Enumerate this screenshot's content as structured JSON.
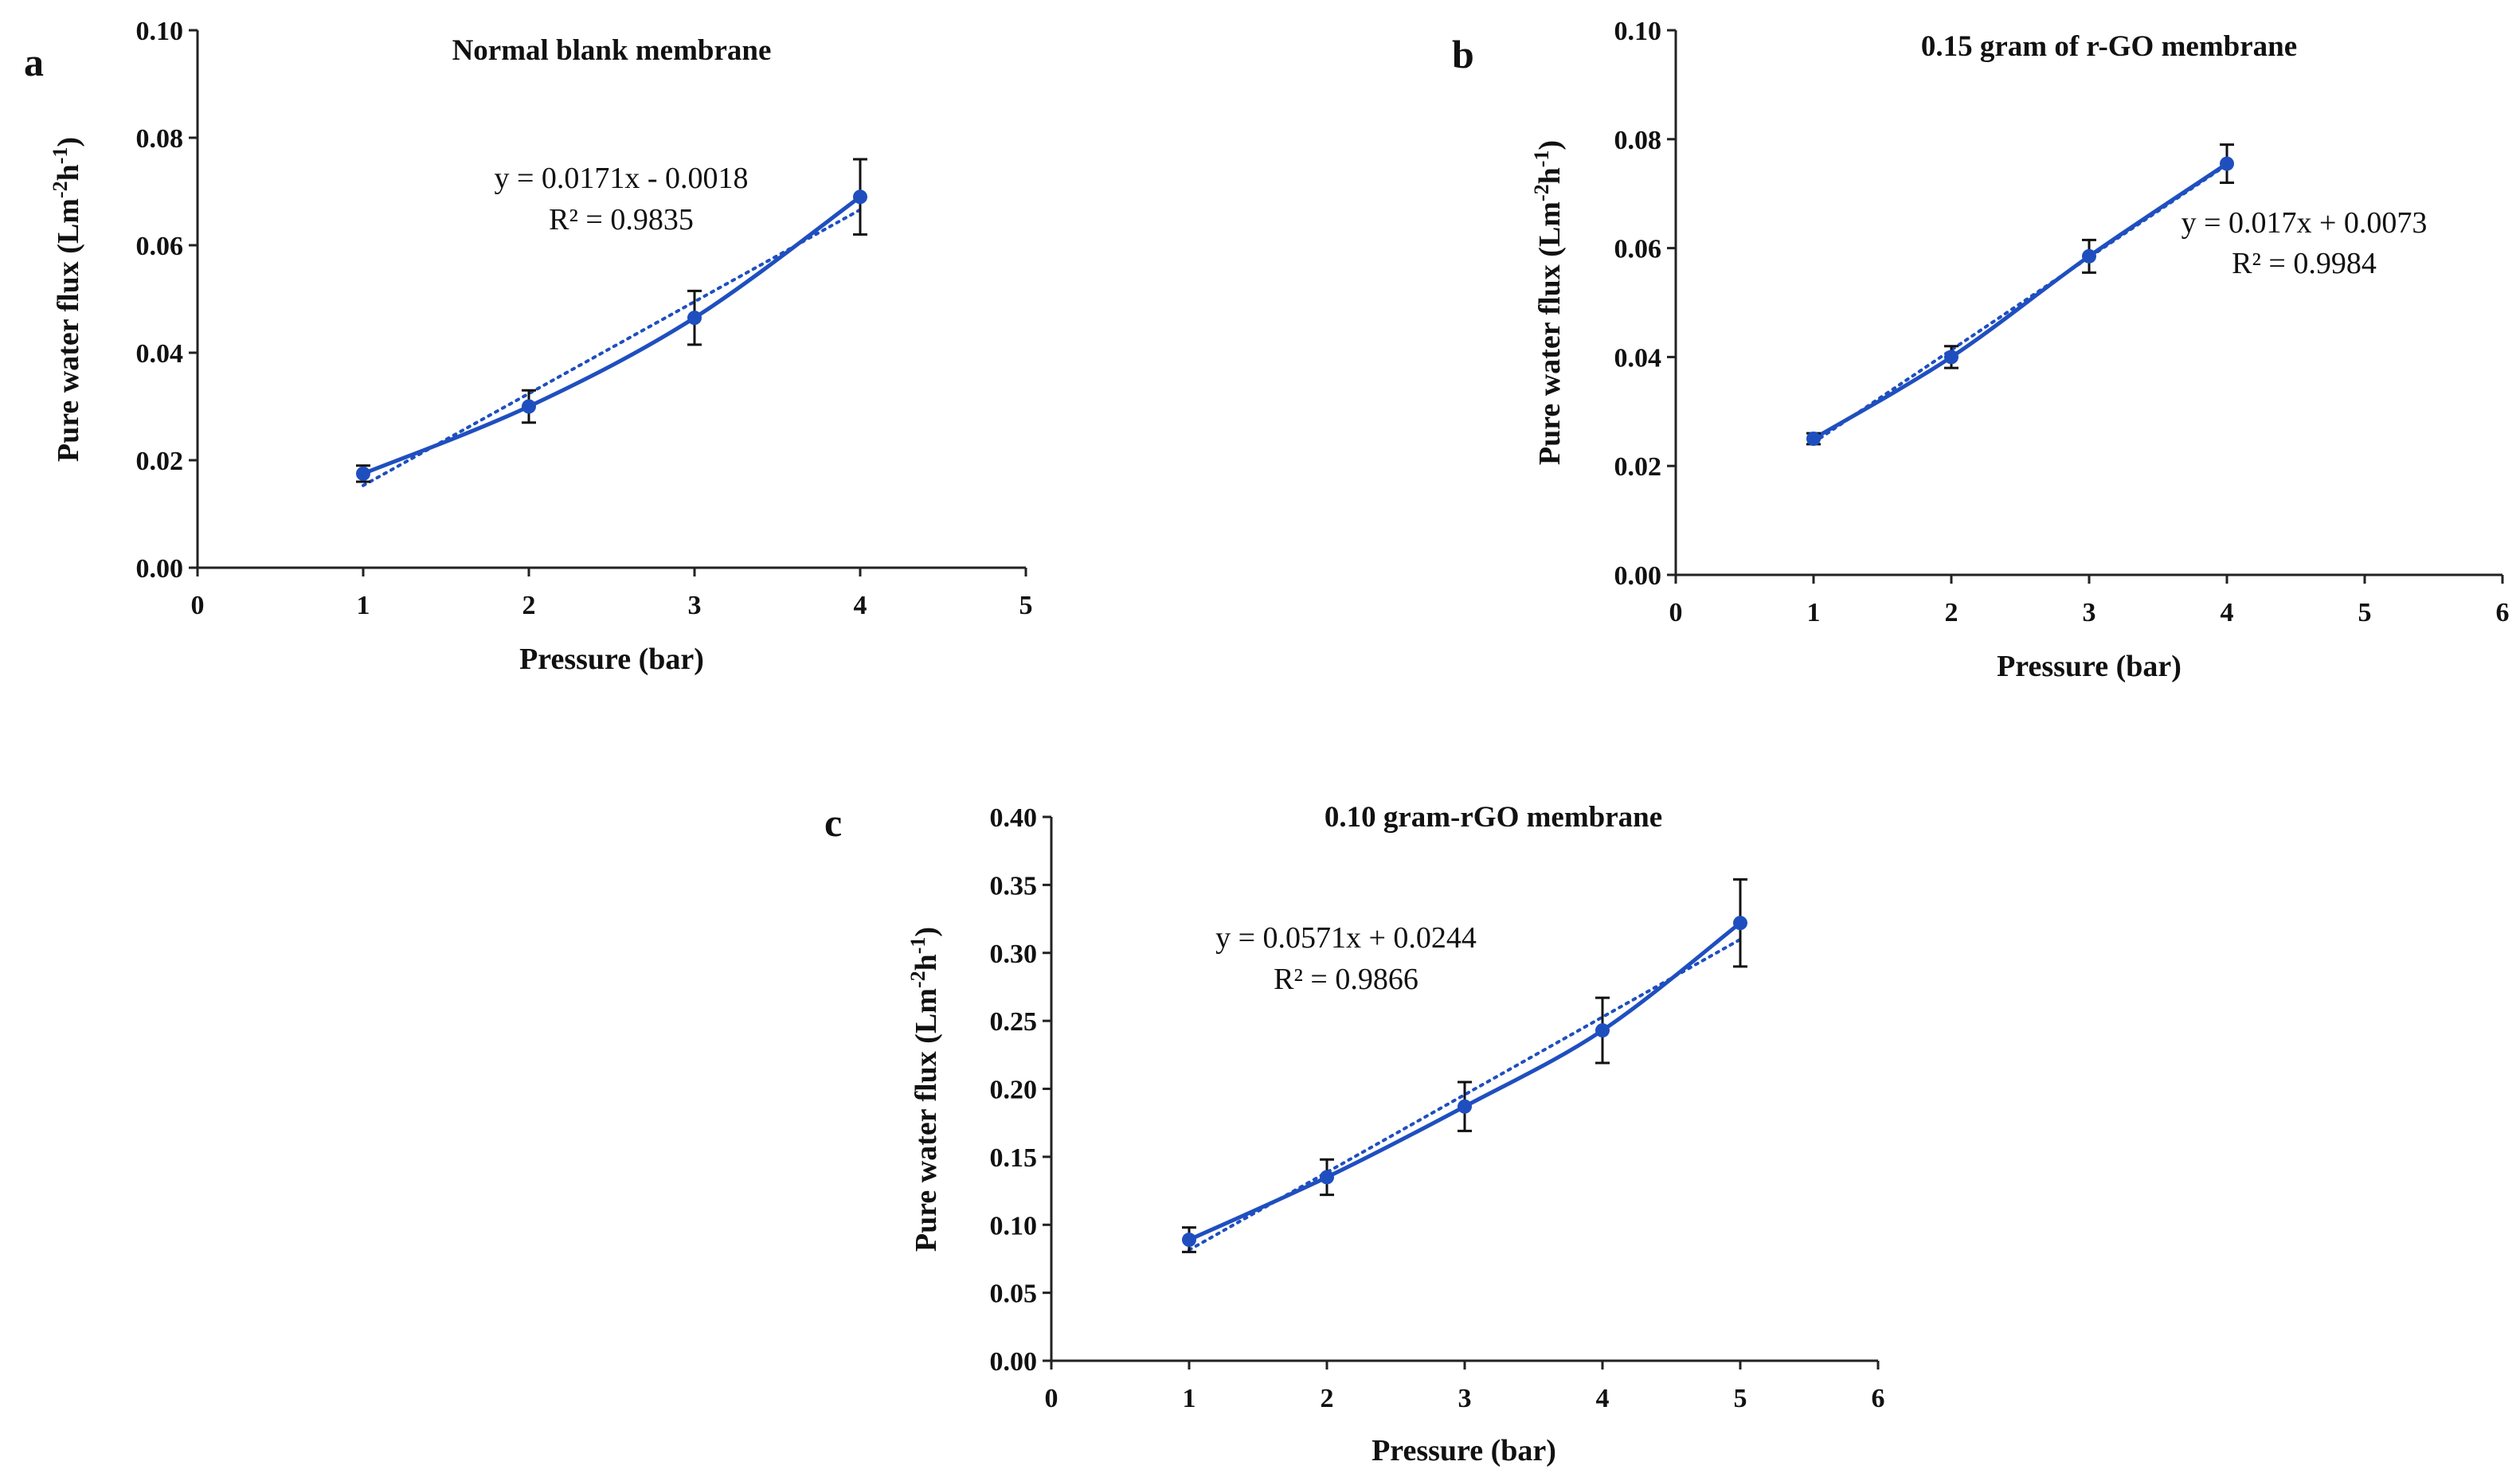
{
  "figure": {
    "colors": {
      "series": "#1f4fbf",
      "error_bar": "#111111",
      "axis": "#222222",
      "text": "#111111"
    }
  },
  "chart_data": [
    {
      "type": "line",
      "panel_label": "a",
      "title": "Normal blank membrane",
      "xlabel": "Pressure (bar)",
      "ylabel_main": "Pure water flux (Lm",
      "ylabel_sup1": "-2",
      "ylabel_mid": "h",
      "ylabel_sup2": "-1",
      "ylabel_end": ")",
      "xlim": [
        0,
        5
      ],
      "ylim": [
        0,
        0.1
      ],
      "xticks": [
        0,
        1,
        2,
        3,
        4,
        5
      ],
      "xtick_labels": [
        "0",
        "1",
        "2",
        "3",
        "4",
        "5"
      ],
      "yticks": [
        0,
        0.02,
        0.04,
        0.06,
        0.08,
        0.1
      ],
      "ytick_labels": [
        "0.00",
        "0.02",
        "0.04",
        "0.06",
        "0.08",
        "0.10"
      ],
      "x": [
        1,
        2,
        3,
        4
      ],
      "y": [
        0.0175,
        0.03,
        0.0465,
        0.069
      ],
      "err": [
        0.0015,
        0.003,
        0.005,
        0.007
      ],
      "trendline": {
        "slope": 0.0171,
        "intercept": -0.0018
      },
      "equation": "y = 0.0171x - 0.0018",
      "r2": "R² = 0.9835"
    },
    {
      "type": "line",
      "panel_label": "b",
      "title": "0.15 gram of r-GO membrane",
      "xlabel": "Pressure (bar)",
      "ylabel_main": "Pure water flux (Lm",
      "ylabel_sup1": "-2",
      "ylabel_mid": "h",
      "ylabel_sup2": "-1",
      "ylabel_end": ")",
      "xlim": [
        0,
        6
      ],
      "ylim": [
        0,
        0.1
      ],
      "xticks": [
        0,
        1,
        2,
        3,
        4,
        5,
        6
      ],
      "xtick_labels": [
        "0",
        "1",
        "2",
        "3",
        "4",
        "5",
        "6"
      ],
      "yticks": [
        0,
        0.02,
        0.04,
        0.06,
        0.08,
        0.1
      ],
      "ytick_labels": [
        "0.00",
        "0.02",
        "0.04",
        "0.06",
        "0.08",
        "0.10"
      ],
      "x": [
        1,
        2,
        3,
        4
      ],
      "y": [
        0.025,
        0.04,
        0.0585,
        0.0755
      ],
      "err": [
        0.001,
        0.002,
        0.003,
        0.0035
      ],
      "trendline": {
        "slope": 0.017,
        "intercept": 0.0073
      },
      "equation": "y = 0.017x + 0.0073",
      "r2": "R² = 0.9984"
    },
    {
      "type": "line",
      "panel_label": "c",
      "title": "0.10 gram-rGO membrane",
      "xlabel": "Pressure (bar)",
      "ylabel_main": "Pure water flux (Lm",
      "ylabel_sup1": "-2",
      "ylabel_mid": "h",
      "ylabel_sup2": "-1",
      "ylabel_end": ")",
      "xlim": [
        0,
        6
      ],
      "ylim": [
        0,
        0.4
      ],
      "xticks": [
        0,
        1,
        2,
        3,
        4,
        5,
        6
      ],
      "xtick_labels": [
        "0",
        "1",
        "2",
        "3",
        "4",
        "5",
        "6"
      ],
      "yticks": [
        0,
        0.05,
        0.1,
        0.15,
        0.2,
        0.25,
        0.3,
        0.35,
        0.4
      ],
      "ytick_labels": [
        "0.00",
        "0.05",
        "0.10",
        "0.15",
        "0.20",
        "0.25",
        "0.30",
        "0.35",
        "0.40"
      ],
      "x": [
        1,
        2,
        3,
        4,
        5
      ],
      "y": [
        0.089,
        0.135,
        0.187,
        0.243,
        0.322
      ],
      "err": [
        0.009,
        0.013,
        0.018,
        0.024,
        0.032
      ],
      "trendline": {
        "slope": 0.0571,
        "intercept": 0.0244
      },
      "equation": "y = 0.0571x + 0.0244",
      "r2": "R² = 0.9866"
    }
  ]
}
